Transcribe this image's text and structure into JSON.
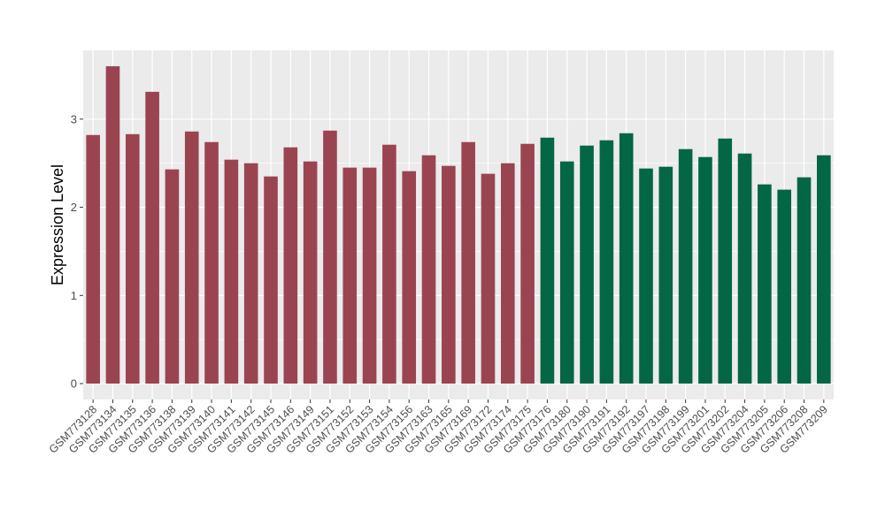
{
  "chart_data": {
    "type": "bar",
    "ylabel": "Expression Level",
    "ylim": [
      -0.18,
      3.78
    ],
    "yticks": [
      0,
      1,
      2,
      3
    ],
    "grid": true,
    "categories": [
      "GSM773128",
      "GSM773134",
      "GSM773135",
      "GSM773136",
      "GSM773138",
      "GSM773139",
      "GSM773140",
      "GSM773141",
      "GSM773142",
      "GSM773145",
      "GSM773146",
      "GSM773149",
      "GSM773151",
      "GSM773152",
      "GSM773153",
      "GSM773154",
      "GSM773156",
      "GSM773163",
      "GSM773165",
      "GSM773169",
      "GSM773172",
      "GSM773174",
      "GSM773175",
      "GSM773176",
      "GSM773180",
      "GSM773190",
      "GSM773191",
      "GSM773192",
      "GSM773197",
      "GSM773198",
      "GSM773199",
      "GSM773201",
      "GSM773202",
      "GSM773204",
      "GSM773205",
      "GSM773206",
      "GSM773208",
      "GSM773209"
    ],
    "values": [
      2.82,
      3.6,
      2.83,
      3.31,
      2.43,
      2.86,
      2.74,
      2.54,
      2.5,
      2.35,
      2.68,
      2.52,
      2.87,
      2.45,
      2.45,
      2.71,
      2.41,
      2.59,
      2.47,
      2.74,
      2.38,
      2.5,
      2.72,
      2.79,
      2.52,
      2.7,
      2.76,
      2.84,
      2.44,
      2.46,
      2.66,
      2.57,
      2.78,
      2.61,
      2.26,
      2.2,
      2.34,
      2.59
    ],
    "group_sizes": [
      23,
      15
    ],
    "colors": {
      "group1": "#9b4451",
      "group2": "#036644",
      "panel": "#ebebeb",
      "grid": "#ffffff"
    }
  }
}
